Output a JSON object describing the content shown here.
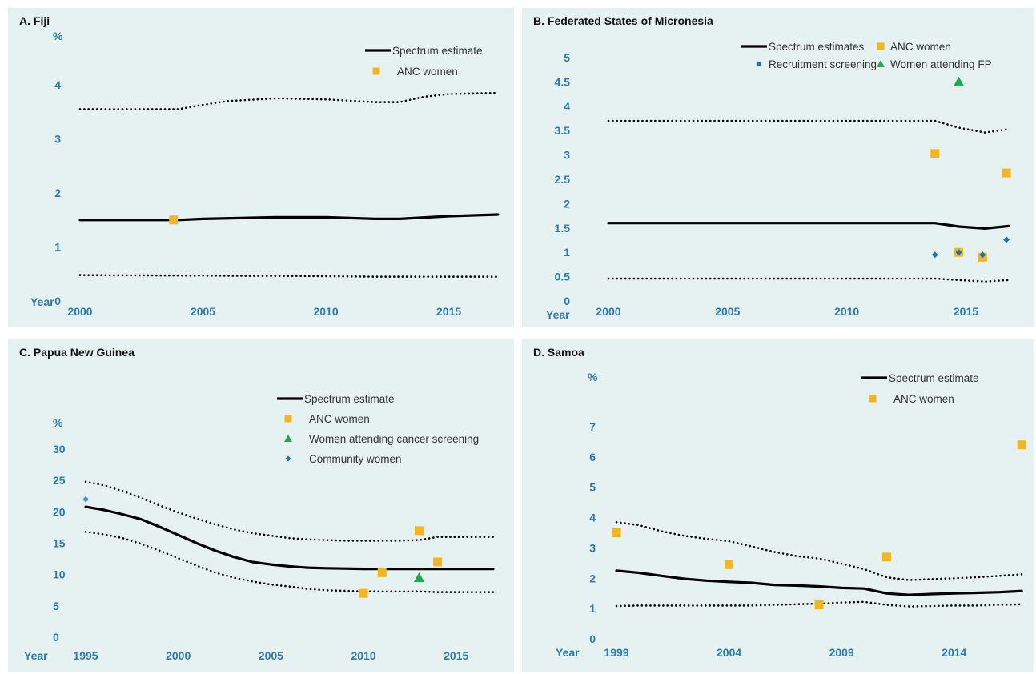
{
  "colors": {
    "background": "#e6f2f2",
    "tick": "#2a7ab8",
    "anc": "#f5b51e",
    "triangle": "#1fa84f",
    "diamond": "#1f6fb5",
    "diamond_light": "#5b8fd0",
    "line": "#000000"
  },
  "chart_data": [
    {
      "type": "line",
      "title": "A. Fiji",
      "ylabel": "%",
      "xlabel": "Year",
      "xlim": [
        2000,
        2017
      ],
      "ylim": [
        0,
        4
      ],
      "xticks": [
        2000,
        2005,
        2010,
        2015
      ],
      "yticks": [
        0,
        1,
        2,
        3,
        4
      ],
      "lines": [
        {
          "name": "Spectrum estimate",
          "style": "solid",
          "x": [
            2000,
            2004,
            2005,
            2008,
            2010,
            2012,
            2013,
            2015,
            2017
          ],
          "y": [
            1.5,
            1.5,
            1.52,
            1.55,
            1.55,
            1.52,
            1.52,
            1.57,
            1.6
          ]
        },
        {
          "style": "dotted",
          "x": [
            2000,
            2004,
            2005,
            2006,
            2008,
            2010,
            2012,
            2013,
            2014,
            2015,
            2017
          ],
          "y": [
            3.55,
            3.55,
            3.63,
            3.7,
            3.75,
            3.73,
            3.68,
            3.68,
            3.78,
            3.83,
            3.85
          ]
        },
        {
          "style": "dotted",
          "x": [
            2000,
            2005,
            2010,
            2012,
            2017
          ],
          "y": [
            0.48,
            0.47,
            0.46,
            0.45,
            0.45
          ]
        }
      ],
      "points": [
        {
          "name": "ANC women",
          "marker": "square",
          "color": "#f5b51e",
          "x": [
            2003.8
          ],
          "y": [
            1.5
          ]
        }
      ],
      "legend": [
        {
          "label": "Spectrum estimate",
          "marker": "line"
        },
        {
          "label": "ANC women",
          "marker": "square",
          "color": "#f5b51e"
        }
      ],
      "legend_position": "top-right"
    },
    {
      "type": "line",
      "title": "B. Federated States of Micronesia",
      "ylabel": "",
      "xlabel": "Year",
      "xlim": [
        2000,
        2017
      ],
      "ylim": [
        0,
        5
      ],
      "xticks": [
        2000,
        2005,
        2010,
        2015
      ],
      "yticks": [
        0,
        0.5,
        1,
        1.5,
        2,
        2.5,
        3,
        3.5,
        4,
        4.5,
        5
      ],
      "lines": [
        {
          "name": "Spectrum estimates",
          "style": "solid",
          "x": [
            2000,
            2013.7,
            2014.7,
            2015.8,
            2016.8
          ],
          "y": [
            1.6,
            1.6,
            1.53,
            1.49,
            1.54
          ]
        },
        {
          "style": "dotted",
          "x": [
            2000,
            2013.7,
            2014.7,
            2015.8,
            2016.8
          ],
          "y": [
            3.7,
            3.7,
            3.56,
            3.46,
            3.53
          ]
        },
        {
          "style": "dotted",
          "x": [
            2000,
            2013.7,
            2014.7,
            2015.8,
            2016.8
          ],
          "y": [
            0.46,
            0.46,
            0.43,
            0.4,
            0.43
          ]
        }
      ],
      "points": [
        {
          "name": "ANC women",
          "marker": "square",
          "color": "#f5b51e",
          "x": [
            2013.7,
            2014.7,
            2015.7,
            2016.7
          ],
          "y": [
            3.03,
            1.0,
            0.9,
            2.63
          ]
        },
        {
          "name": "Recruitment screening",
          "marker": "diamond",
          "color": "#1f6fb5",
          "x": [
            2013.7,
            2014.7,
            2015.7,
            2016.7
          ],
          "y": [
            0.95,
            1.0,
            0.95,
            1.26
          ]
        },
        {
          "name": "Women attending FP",
          "marker": "triangle",
          "color": "#1fa84f",
          "x": [
            2014.7
          ],
          "y": [
            4.5
          ]
        }
      ],
      "legend": [
        {
          "label": "Spectrum estimates",
          "marker": "line"
        },
        {
          "label": "ANC women",
          "marker": "square",
          "color": "#f5b51e"
        },
        {
          "label": "Recruitment screening",
          "marker": "diamond",
          "color": "#1f6fb5"
        },
        {
          "label": "Women attending FP",
          "marker": "triangle",
          "color": "#1fa84f"
        }
      ],
      "legend_position": "top-right"
    },
    {
      "type": "line",
      "title": "C. Papua New Guinea",
      "ylabel": "%",
      "xlabel": "Year",
      "xlim": [
        1995,
        2017
      ],
      "ylim": [
        0,
        30
      ],
      "xticks": [
        1995,
        2000,
        2005,
        2010,
        2015
      ],
      "yticks": [
        0,
        5,
        10,
        15,
        20,
        25,
        30
      ],
      "lines": [
        {
          "name": "Spectrum estimate",
          "style": "solid",
          "x": [
            1995,
            1996,
            1997,
            1998,
            1999,
            2000,
            2001,
            2002,
            2003,
            2004,
            2005,
            2006,
            2007,
            2008,
            2009,
            2010,
            2011,
            2012,
            2013,
            2014,
            2015,
            2016,
            2017
          ],
          "y": [
            20.8,
            20.3,
            19.6,
            18.8,
            17.6,
            16.3,
            15.0,
            13.8,
            12.8,
            12.0,
            11.6,
            11.3,
            11.1,
            11.0,
            10.95,
            10.9,
            10.9,
            10.9,
            10.9,
            10.9,
            10.9,
            10.9,
            10.9
          ]
        },
        {
          "style": "dotted",
          "x": [
            1995,
            1996,
            1997,
            1998,
            1999,
            2000,
            2001,
            2002,
            2003,
            2004,
            2005,
            2006,
            2007,
            2008,
            2009,
            2010,
            2011,
            2012,
            2013,
            2014,
            2015,
            2016,
            2017
          ],
          "y": [
            24.8,
            24.2,
            23.3,
            22.2,
            21.0,
            19.9,
            18.9,
            18.0,
            17.2,
            16.6,
            16.2,
            15.8,
            15.6,
            15.5,
            15.4,
            15.4,
            15.4,
            15.4,
            15.5,
            16.0,
            16.0,
            16.0,
            16.0
          ]
        },
        {
          "style": "dotted",
          "x": [
            1995,
            1996,
            1997,
            1998,
            1999,
            2000,
            2001,
            2002,
            2003,
            2004,
            2005,
            2006,
            2007,
            2008,
            2009,
            2010,
            2011,
            2012,
            2013,
            2014,
            2015,
            2016,
            2017
          ],
          "y": [
            16.8,
            16.4,
            15.8,
            14.9,
            13.8,
            12.6,
            11.4,
            10.3,
            9.5,
            8.9,
            8.4,
            8.1,
            7.7,
            7.5,
            7.4,
            7.3,
            7.3,
            7.3,
            7.3,
            7.2,
            7.2,
            7.2,
            7.2
          ]
        }
      ],
      "points": [
        {
          "name": "ANC women",
          "marker": "square",
          "color": "#f5b51e",
          "x": [
            2010,
            2011,
            2013,
            2014
          ],
          "y": [
            7.0,
            10.3,
            17.0,
            12.0
          ]
        },
        {
          "name": "Women attending cancer screening",
          "marker": "triangle",
          "color": "#1fa84f",
          "x": [
            2013
          ],
          "y": [
            9.5
          ]
        },
        {
          "name": "Community women",
          "marker": "diamond",
          "color": "#5b8fd0",
          "x": [
            1995
          ],
          "y": [
            22.0
          ]
        }
      ],
      "legend": [
        {
          "label": "Spectrum estimate",
          "marker": "line"
        },
        {
          "label": "ANC women",
          "marker": "square",
          "color": "#f5b51e"
        },
        {
          "label": "Women attending cancer screening",
          "marker": "triangle",
          "color": "#1fa84f"
        },
        {
          "label": "Community women",
          "marker": "diamond",
          "color": "#1f6fb5"
        }
      ],
      "legend_position": "top-right"
    },
    {
      "type": "line",
      "title": "D. Samoa",
      "ylabel": "%",
      "xlabel": "Year",
      "xlim": [
        1999,
        2016
      ],
      "ylim": [
        0,
        7
      ],
      "xticks": [
        1999,
        2004,
        2009,
        2014
      ],
      "yticks": [
        0,
        1,
        2,
        3,
        4,
        5,
        6,
        7
      ],
      "lines": [
        {
          "name": "Spectrum estimate",
          "style": "solid",
          "x": [
            1999,
            2000,
            2001,
            2002,
            2003,
            2004,
            2005,
            2006,
            2007,
            2008,
            2009,
            2010,
            2011,
            2012,
            2013,
            2014,
            2015,
            2016,
            2017
          ],
          "y": [
            2.25,
            2.18,
            2.08,
            1.98,
            1.92,
            1.88,
            1.85,
            1.78,
            1.76,
            1.73,
            1.68,
            1.66,
            1.5,
            1.45,
            1.48,
            1.5,
            1.52,
            1.54,
            1.58
          ]
        },
        {
          "style": "dotted",
          "x": [
            1999,
            2000,
            2001,
            2002,
            2003,
            2004,
            2005,
            2006,
            2007,
            2008,
            2009,
            2010,
            2011,
            2012,
            2013,
            2014,
            2015,
            2016,
            2017
          ],
          "y": [
            3.85,
            3.75,
            3.55,
            3.4,
            3.3,
            3.22,
            3.05,
            2.87,
            2.73,
            2.65,
            2.48,
            2.3,
            2.03,
            1.94,
            1.97,
            2.0,
            2.03,
            2.08,
            2.13
          ]
        },
        {
          "style": "dotted",
          "x": [
            1999,
            2000,
            2001,
            2002,
            2003,
            2004,
            2005,
            2006,
            2007,
            2008,
            2009,
            2010,
            2011,
            2012,
            2013,
            2014,
            2015,
            2016,
            2017
          ],
          "y": [
            1.08,
            1.1,
            1.1,
            1.1,
            1.1,
            1.1,
            1.1,
            1.12,
            1.14,
            1.16,
            1.2,
            1.22,
            1.12,
            1.07,
            1.08,
            1.1,
            1.1,
            1.12,
            1.14
          ]
        }
      ],
      "points": [
        {
          "name": "ANC women",
          "marker": "square",
          "color": "#f5b51e",
          "x": [
            1999,
            2004,
            2008,
            2011,
            2017
          ],
          "y": [
            3.5,
            2.45,
            1.12,
            2.7,
            6.4
          ]
        }
      ],
      "legend": [
        {
          "label": "Spectrum estimate",
          "marker": "line"
        },
        {
          "label": "ANC women",
          "marker": "square",
          "color": "#f5b51e"
        }
      ],
      "legend_position": "top-right"
    }
  ]
}
